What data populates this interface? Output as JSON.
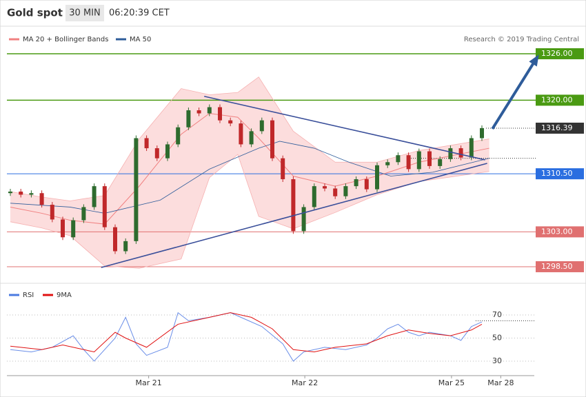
{
  "chart_data": {
    "type": "candlestick",
    "header": {
      "title": "Gold spot",
      "timeframe": "30 MIN",
      "time": "06:20:39 CET"
    },
    "legend": {
      "bollinger": "MA 20 + Bollinger Bands",
      "ma50": "MA 50",
      "credit": "Research © 2019 Trading Central"
    },
    "ylim": [
      1296.45,
      1326.71
    ],
    "open": [
      1308.0,
      1308.2,
      1307.8,
      1308.0,
      1306.5,
      1304.6,
      1302.3,
      1304.5,
      1306.2,
      1308.9,
      1303.6,
      1300.5,
      1301.8,
      1315.1,
      1313.8,
      1312.5,
      1314.3,
      1316.5,
      1318.7,
      1318.3,
      1319.1,
      1317.4,
      1317.0,
      1314.3,
      1316.0,
      1317.4,
      1312.5,
      1309.8,
      1303.1,
      1306.2,
      1308.9,
      1308.6,
      1307.6,
      1308.9,
      1309.8,
      1308.5,
      1311.6,
      1312.0,
      1312.9,
      1311.1,
      1313.4,
      1311.5,
      1312.4,
      1313.8,
      1312.6,
      1315.1
    ],
    "close": [
      1308.2,
      1307.8,
      1308.0,
      1306.5,
      1304.6,
      1302.3,
      1304.5,
      1306.2,
      1308.9,
      1303.6,
      1300.5,
      1301.8,
      1315.1,
      1313.8,
      1312.5,
      1314.3,
      1316.5,
      1318.7,
      1318.3,
      1319.1,
      1317.4,
      1317.0,
      1314.3,
      1316.0,
      1317.4,
      1312.5,
      1309.8,
      1303.1,
      1306.2,
      1308.9,
      1308.6,
      1307.6,
      1308.9,
      1309.8,
      1308.5,
      1311.6,
      1312.0,
      1312.9,
      1311.1,
      1313.4,
      1311.5,
      1312.4,
      1313.8,
      1312.6,
      1315.1,
      1316.4
    ],
    "up_color": "#2e6b2e",
    "down_color": "#c0282a",
    "ma_x": [
      0,
      3,
      5.7,
      9,
      12.3,
      16.3,
      19,
      21.7,
      23.7,
      27,
      31,
      35,
      39,
      45.7
    ],
    "ma20": [
      1306.2,
      1305.4,
      1304.5,
      1304.0,
      1308.9,
      1315.6,
      1318.3,
      1317.8,
      1315.1,
      1310.2,
      1308.9,
      1310.2,
      1312.0,
      1313.8
    ],
    "band_upper": [
      1308.2,
      1307.5,
      1307.0,
      1307.7,
      1315.0,
      1321.5,
      1320.7,
      1321.0,
      1323.0,
      1316.0,
      1312.0,
      1312.0,
      1313.5,
      1315.0
    ],
    "band_lower": [
      1304.3,
      1303.5,
      1302.5,
      1298.6,
      1298.3,
      1299.5,
      1310.0,
      1313.0,
      1305.0,
      1303.4,
      1305.5,
      1307.8,
      1309.5,
      1310.8
    ],
    "ma50_x": [
      0,
      5.7,
      9,
      14.3,
      19,
      23.7,
      25.7,
      29,
      32.3,
      36.3,
      40.3,
      45.7
    ],
    "ma50": [
      1306.7,
      1306.2,
      1305.4,
      1307.1,
      1311.1,
      1313.8,
      1314.7,
      1313.8,
      1312.0,
      1310.2,
      1310.7,
      1312.5
    ],
    "levels": [
      {
        "value": 1326,
        "label": "1326.00",
        "color": "#4a9a12"
      },
      {
        "value": 1320,
        "label": "1320.00",
        "color": "#4a9a12"
      },
      {
        "value": 1310.5,
        "label": "1310.50",
        "color": "#2a6ee0"
      },
      {
        "value": 1303,
        "label": "1303.00",
        "color": "#e07070"
      },
      {
        "value": 1298.5,
        "label": "1298.50",
        "color": "#e07070"
      }
    ],
    "last_price": {
      "value": 1316.39,
      "label": "1316.39"
    },
    "dotted_level": 1312.5,
    "trendlines": [
      {
        "x": [
          8.67,
          45.5
        ],
        "y": [
          1298.4,
          1311.85
        ]
      },
      {
        "x": [
          18.5,
          45.3
        ],
        "y": [
          1320.5,
          1312.3
        ]
      }
    ],
    "arrow": {
      "x": [
        46,
        50.3
      ],
      "y": [
        1316.3,
        1325.6
      ]
    },
    "rsi": {
      "legend_rsi": "RSI",
      "legend_ma": "9MA",
      "ylim": [
        20.4,
        77.2
      ],
      "yticks": [
        30,
        50,
        70
      ],
      "dotted_level": 65,
      "x": [
        0,
        2,
        4,
        6,
        7,
        8,
        10,
        11,
        12,
        13,
        15,
        16,
        17,
        19,
        21,
        22,
        24,
        26,
        27,
        28,
        30,
        32,
        34,
        35,
        36,
        37,
        38,
        39,
        40,
        42,
        43,
        44,
        45
      ],
      "values": [
        40,
        38,
        42,
        52,
        40,
        30,
        50,
        68,
        45,
        35,
        42,
        72,
        65,
        68,
        72,
        68,
        60,
        45,
        30,
        38,
        42,
        40,
        44,
        50,
        58,
        62,
        55,
        52,
        55,
        52,
        48,
        60,
        64
      ],
      "ma_x": [
        0,
        3,
        5,
        8,
        10,
        11,
        13,
        16,
        19,
        21,
        23,
        25,
        27,
        29,
        31,
        34,
        36,
        38,
        40,
        42,
        44,
        45
      ],
      "ma_values": [
        43,
        40,
        44,
        38,
        55,
        50,
        42,
        62,
        68,
        72,
        68,
        58,
        40,
        38,
        42,
        45,
        52,
        57,
        54,
        52,
        57,
        62
      ]
    },
    "dates": [
      {
        "x": 13.2,
        "label": "Mar 21"
      },
      {
        "x": 28.1,
        "label": "Mar 22"
      },
      {
        "x": 42.1,
        "label": "Mar 25"
      },
      {
        "x": 46.8,
        "label": "Mar 28"
      }
    ]
  }
}
